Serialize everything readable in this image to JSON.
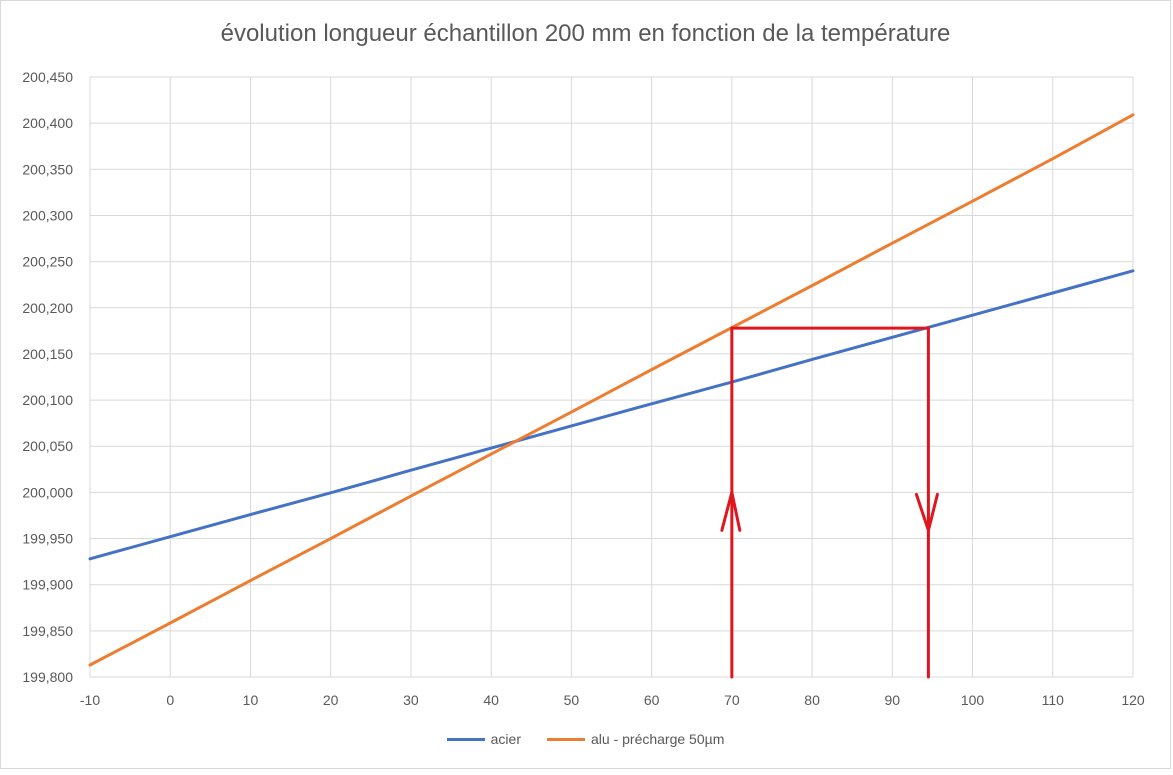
{
  "chart_data": {
    "type": "line",
    "title": "évolution longueur échantillon 200 mm en fonction de la température",
    "xlabel": "",
    "ylabel": "",
    "xlim": [
      -10,
      120
    ],
    "ylim": [
      199.8,
      200.45
    ],
    "x_ticks": [
      "-10",
      "0",
      "10",
      "20",
      "30",
      "40",
      "50",
      "60",
      "70",
      "80",
      "90",
      "100",
      "110",
      "120"
    ],
    "y_ticks": [
      "199,800",
      "199,850",
      "199,900",
      "199,950",
      "200,000",
      "200,050",
      "200,100",
      "200,150",
      "200,200",
      "200,250",
      "200,300",
      "200,350",
      "200,400",
      "200,450"
    ],
    "grid": true,
    "legend_position": "bottom",
    "series": [
      {
        "name": "acier",
        "color": "#4472c4",
        "x": [
          -10,
          0,
          10,
          20,
          30,
          40,
          50,
          60,
          70,
          80,
          90,
          100,
          110,
          120
        ],
        "y": [
          199.928,
          199.952,
          199.976,
          199.9995,
          200.024,
          200.048,
          200.072,
          200.096,
          200.1195,
          200.144,
          200.168,
          200.192,
          200.216,
          200.24
        ]
      },
      {
        "name": "alu - précharge 50µm",
        "color": "#ed7d31",
        "x": [
          -10,
          0,
          10,
          20,
          30,
          40,
          50,
          60,
          70,
          80,
          90,
          100,
          110,
          120
        ],
        "y": [
          199.813,
          199.8585,
          199.9045,
          199.95,
          199.996,
          200.0415,
          200.087,
          200.133,
          200.1785,
          200.224,
          200.27,
          200.3155,
          200.3615,
          200.409
        ]
      }
    ],
    "annotations": {
      "color": "#e0161e",
      "level_y": 200.178,
      "left_x": 70,
      "right_x": 94.5,
      "up_arrow_tip_y": 200.0
    }
  }
}
